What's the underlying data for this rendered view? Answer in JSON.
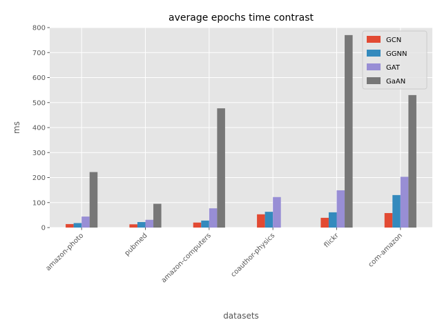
{
  "chart_data": {
    "type": "bar",
    "title": "average epochs time contrast",
    "xlabel": "datasets",
    "ylabel": "ms",
    "ylim": [
      0,
      800
    ],
    "yticks": [
      0,
      100,
      200,
      300,
      400,
      500,
      600,
      700,
      800
    ],
    "grid": true,
    "legend_position": "top-right",
    "categories": [
      "amazon-photo",
      "pubmed",
      "amazon-computers",
      "coauthor-physics",
      "flickr",
      "com-amazon"
    ],
    "series": [
      {
        "name": "GCN",
        "color": "#E24A33",
        "values": [
          14,
          13,
          20,
          53,
          39,
          58
        ]
      },
      {
        "name": "GGNN",
        "color": "#348ABD",
        "values": [
          18,
          22,
          28,
          63,
          61,
          130
        ]
      },
      {
        "name": "GAT",
        "color": "#988ED5",
        "values": [
          44,
          31,
          77,
          122,
          149,
          203
        ]
      },
      {
        "name": "GaAN",
        "color": "#777777",
        "values": [
          222,
          95,
          477,
          null,
          770,
          530
        ]
      }
    ]
  }
}
